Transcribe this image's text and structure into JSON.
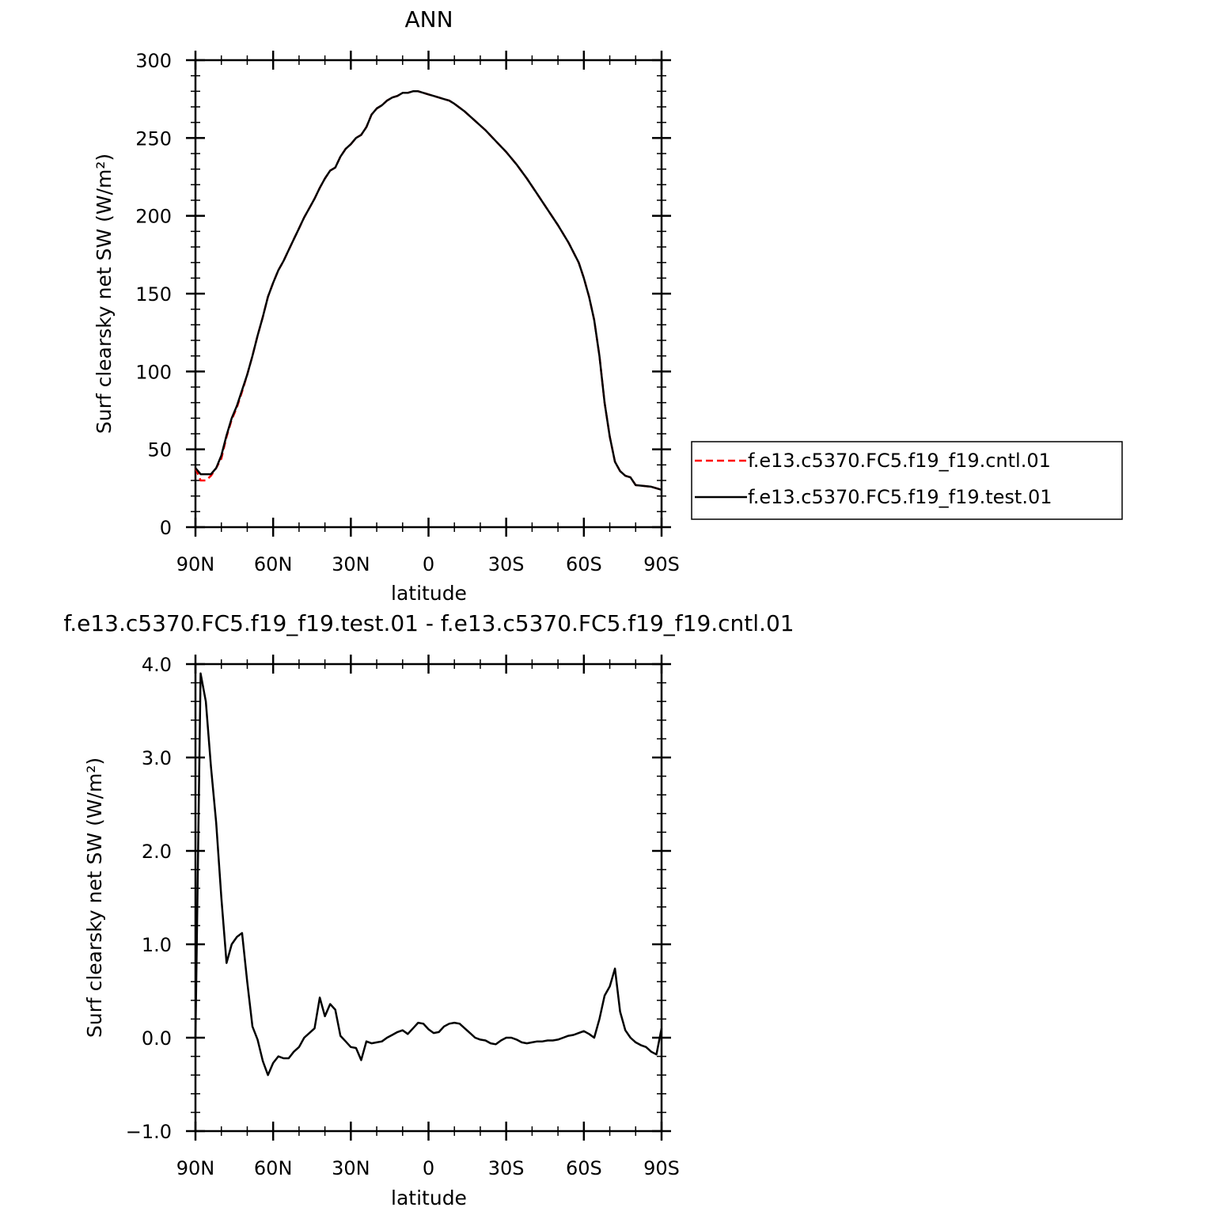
{
  "chart_data": [
    {
      "type": "line",
      "title": "ANN",
      "xlabel": "latitude",
      "ylabel": "Surf clearsky net SW (W/m²)",
      "xlim": [
        90,
        -90
      ],
      "ylim": [
        0,
        300
      ],
      "x_tick_labels": [
        "90N",
        "60N",
        "30N",
        "0",
        "30S",
        "60S",
        "90S"
      ],
      "y_tick_labels": [
        "0",
        "50",
        "100",
        "150",
        "200",
        "250",
        "300"
      ],
      "legend_position": "right",
      "series": [
        {
          "name": "f.e13.c5370.FC5.f19_f19.cntl.01",
          "color": "#ff0000",
          "dash": "dashed",
          "x": [
            90,
            88,
            86,
            84,
            82,
            80,
            78,
            76,
            74,
            72,
            70,
            68,
            66,
            64,
            62,
            60,
            58,
            56,
            54,
            52,
            50,
            48,
            46,
            44,
            42,
            40,
            38,
            36,
            34,
            32,
            30,
            28,
            26,
            24,
            22,
            20,
            18,
            16,
            14,
            12,
            10,
            8,
            6,
            4,
            2,
            0,
            -2,
            -4,
            -6,
            -8,
            -10,
            -14,
            -18,
            -22,
            -26,
            -30,
            -34,
            -38,
            -42,
            -46,
            -50,
            -54,
            -58,
            -60,
            -62,
            -64,
            -66,
            -68,
            -70,
            -72,
            -74,
            -76,
            -78,
            -80,
            -86,
            -90
          ],
          "y": [
            38,
            30,
            30,
            33,
            38,
            44,
            58,
            69,
            77,
            87,
            98,
            110,
            123,
            135,
            148,
            157,
            165,
            171,
            178,
            185,
            192,
            199,
            205,
            211,
            218,
            224,
            229,
            231,
            238,
            243,
            246,
            250,
            252,
            257,
            265,
            269,
            271,
            274,
            276,
            277,
            279,
            279,
            280,
            280,
            279,
            278,
            277,
            276,
            275,
            274,
            272,
            267,
            261,
            255,
            248,
            241,
            233,
            224,
            214,
            204,
            194,
            183,
            170,
            160,
            148,
            133,
            110,
            80,
            58,
            42,
            36,
            33,
            32,
            27,
            26,
            24
          ]
        },
        {
          "name": "f.e13.c5370.FC5.f19_f19.test.01",
          "color": "#000000",
          "dash": "solid",
          "x": [
            90,
            88,
            86,
            84,
            82,
            80,
            78,
            76,
            74,
            72,
            70,
            68,
            66,
            64,
            62,
            60,
            58,
            56,
            54,
            52,
            50,
            48,
            46,
            44,
            42,
            40,
            38,
            36,
            34,
            32,
            30,
            28,
            26,
            24,
            22,
            20,
            18,
            16,
            14,
            12,
            10,
            8,
            6,
            4,
            2,
            0,
            -2,
            -4,
            -6,
            -8,
            -10,
            -14,
            -18,
            -22,
            -26,
            -30,
            -34,
            -38,
            -42,
            -46,
            -50,
            -54,
            -58,
            -60,
            -62,
            -64,
            -66,
            -68,
            -70,
            -72,
            -74,
            -76,
            -78,
            -80,
            -86,
            -90
          ],
          "y": [
            38,
            34,
            34,
            34,
            38,
            46,
            59,
            70,
            78,
            88,
            98,
            110,
            123,
            135,
            148,
            157,
            165,
            171,
            178,
            185,
            192,
            199,
            205,
            211,
            218,
            224,
            229,
            231,
            238,
            243,
            246,
            250,
            252,
            257,
            265,
            269,
            271,
            274,
            276,
            277,
            279,
            279,
            280,
            280,
            279,
            278,
            277,
            276,
            275,
            274,
            272,
            267,
            261,
            255,
            248,
            241,
            233,
            224,
            214,
            204,
            194,
            183,
            170,
            160,
            148,
            133,
            110,
            80,
            58,
            42,
            36,
            33,
            32,
            27,
            26,
            24
          ]
        }
      ]
    },
    {
      "type": "line",
      "title": "f.e13.c5370.FC5.f19_f19.test.01 - f.e13.c5370.FC5.f19_f19.cntl.01",
      "xlabel": "latitude",
      "ylabel": "Surf clearsky net SW (W/m²)",
      "xlim": [
        90,
        -90
      ],
      "ylim": [
        -1.0,
        4.0
      ],
      "x_tick_labels": [
        "90N",
        "60N",
        "30N",
        "0",
        "30S",
        "60S",
        "90S"
      ],
      "y_tick_labels": [
        "−1.0",
        "0.0",
        "1.0",
        "2.0",
        "3.0",
        "4.0"
      ],
      "series": [
        {
          "color": "#000000",
          "dash": "solid",
          "x": [
            90,
            88,
            86,
            84,
            82,
            80,
            78,
            76,
            74,
            72,
            70,
            68,
            66,
            64,
            62,
            60,
            58,
            56,
            54,
            52,
            50,
            48,
            46,
            44,
            42,
            40,
            38,
            36,
            34,
            32,
            30,
            28,
            26,
            24,
            22,
            20,
            18,
            16,
            14,
            12,
            10,
            8,
            6,
            4,
            2,
            0,
            -2,
            -4,
            -6,
            -8,
            -10,
            -12,
            -14,
            -16,
            -18,
            -20,
            -22,
            -24,
            -26,
            -28,
            -30,
            -32,
            -34,
            -36,
            -38,
            -40,
            -42,
            -44,
            -46,
            -48,
            -50,
            -52,
            -54,
            -56,
            -58,
            -60,
            -62,
            -64,
            -66,
            -68,
            -70,
            -72,
            -74,
            -76,
            -78,
            -80,
            -82,
            -84,
            -86,
            -88,
            -90
          ],
          "y": [
            0.0,
            3.9,
            3.6,
            2.9,
            2.3,
            1.5,
            0.8,
            1.0,
            1.08,
            1.12,
            0.6,
            0.12,
            -0.02,
            -0.25,
            -0.4,
            -0.27,
            -0.2,
            -0.22,
            -0.22,
            -0.15,
            -0.1,
            0.0,
            0.05,
            0.1,
            0.43,
            0.23,
            0.36,
            0.3,
            0.02,
            -0.04,
            -0.1,
            -0.11,
            -0.24,
            -0.04,
            -0.06,
            -0.05,
            -0.04,
            0.0,
            0.03,
            0.06,
            0.08,
            0.04,
            0.1,
            0.16,
            0.15,
            0.09,
            0.05,
            0.06,
            0.12,
            0.15,
            0.16,
            0.15,
            0.1,
            0.05,
            0.0,
            -0.02,
            -0.03,
            -0.06,
            -0.07,
            -0.03,
            0.0,
            0.0,
            -0.02,
            -0.05,
            -0.06,
            -0.05,
            -0.04,
            -0.04,
            -0.03,
            -0.03,
            -0.02,
            0.0,
            0.02,
            0.03,
            0.05,
            0.07,
            0.04,
            0.0,
            0.2,
            0.45,
            0.55,
            0.74,
            0.28,
            0.08,
            0.0,
            -0.05,
            -0.08,
            -0.1,
            -0.15,
            -0.18,
            0.1
          ]
        }
      ]
    }
  ]
}
